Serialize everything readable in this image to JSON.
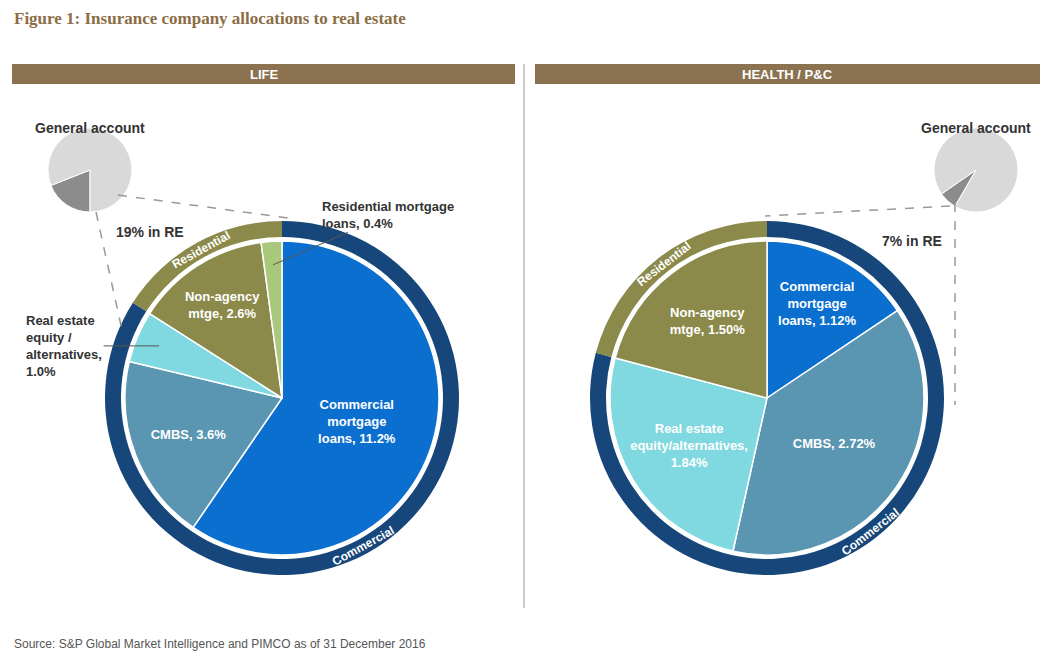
{
  "title": "Figure 1: Insurance company allocations to real estate",
  "source": "Source: S&P Global Market Intelligence and PIMCO as of 31 December 2016",
  "chart_data": [
    {
      "type": "pie",
      "title": "LIFE",
      "general_account": {
        "label": "General account",
        "value": 19,
        "value_label": "19% in RE",
        "colors": [
          "#8c8c8c",
          "#d9d9d9"
        ]
      },
      "labels": [
        "Commercial\nmortgage\nloans, 11.2%",
        "CMBS, 3.6%",
        "Real estate\nequity /\nalternatives,\n1.0%",
        "Non-agency\nmtge, 2.6%",
        "Residential mortgage\nloans, 0.4%"
      ],
      "values": [
        11.2,
        3.6,
        1.0,
        2.6,
        0.4
      ],
      "groups": [
        "Commercial",
        "Commercial",
        "Commercial",
        "Residential",
        "Residential"
      ],
      "colors": [
        "#0b6fcf",
        "#5a96b2",
        "#80d8e0",
        "#8b8a4b",
        "#a9c87c"
      ],
      "rings": [
        {
          "name": "Commercial",
          "color": "#17477a"
        },
        {
          "name": "Residential",
          "color": "#8b8a4b"
        }
      ]
    },
    {
      "type": "pie",
      "title": "HEALTH / P&C",
      "general_account": {
        "label": "General account",
        "value": 7,
        "value_label": "7% in RE",
        "colors": [
          "#8c8c8c",
          "#d9d9d9"
        ]
      },
      "labels": [
        "Commercial\nmortgage\nloans, 1.12%",
        "CMBS, 2.72%",
        "Real estate\nequity/alternatives,\n1.84%",
        "Non-agency\nmtge, 1.50%"
      ],
      "values": [
        1.12,
        2.72,
        1.84,
        1.5
      ],
      "groups": [
        "Commercial",
        "Commercial",
        "Commercial",
        "Residential"
      ],
      "colors": [
        "#0b6fcf",
        "#5a96b2",
        "#80d8e0",
        "#8b8a4b"
      ],
      "rings": [
        {
          "name": "Commercial",
          "color": "#17477a"
        },
        {
          "name": "Residential",
          "color": "#8b8a4b"
        }
      ]
    }
  ]
}
